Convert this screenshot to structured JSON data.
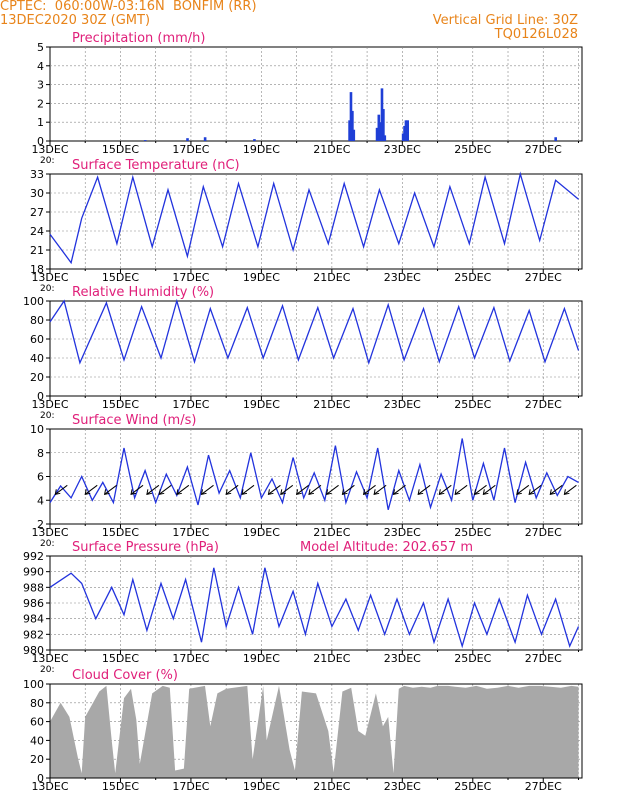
{
  "header": {
    "line1": "CPTEC:  060:00W-03:16N  BONFIM (RR)",
    "line2": "13DEC2020 30Z (GMT)",
    "grid_label": "Vertical Grid Line: 30Z",
    "code": "TQ0126L028",
    "model_altitude": "Model Altitude: 202.657 m"
  },
  "colors": {
    "header": "#e8841a",
    "title": "#e0207a",
    "line": "#2233dd",
    "bar": "#1f3fd6",
    "cloud": "#a8a8a8"
  },
  "x_axis": {
    "labels": [
      "13DEC",
      "15DEC",
      "17DEC",
      "19DEC",
      "21DEC",
      "23DEC",
      "25DEC",
      "27DEC"
    ],
    "label_days": [
      0,
      2,
      4,
      6,
      8,
      10,
      12,
      14
    ],
    "range_days": [
      0,
      15.1
    ],
    "grid": "vertical dashed lines daily at 30Z",
    "truncated_label": "20:"
  },
  "chart_data": [
    {
      "type": "bar",
      "title": "Precipitation (mm/h)",
      "ylim": [
        0,
        5
      ],
      "yticks": [
        "0",
        "1",
        "2",
        "3",
        "4",
        "5"
      ],
      "x_days": [
        2.7,
        3.9,
        4.4,
        5.8,
        8.5,
        8.54,
        8.58,
        8.62,
        9.28,
        9.33,
        9.37,
        9.42,
        9.46,
        9.5,
        10.02,
        10.06,
        10.1,
        10.15,
        14.35
      ],
      "values": [
        0.05,
        0.15,
        0.2,
        0.1,
        1.1,
        2.6,
        1.6,
        0.6,
        0.7,
        1.4,
        1.0,
        2.8,
        1.7,
        0.3,
        0.4,
        0.8,
        1.1,
        1.1,
        0.2
      ]
    },
    {
      "type": "line",
      "title": "Surface Temperature (nC)",
      "ylim": [
        18,
        33
      ],
      "yticks": [
        "18",
        "21",
        "24",
        "27",
        "30",
        "33"
      ],
      "series": [
        {
          "x_days": [
            0,
            0.6,
            0.9,
            1.35,
            1.9,
            2.35,
            2.9,
            3.35,
            3.9,
            4.35,
            4.9,
            5.35,
            5.9,
            6.35,
            6.9,
            7.35,
            7.9,
            8.35,
            8.9,
            9.35,
            9.9,
            10.35,
            10.9,
            11.35,
            11.9,
            12.35,
            12.9,
            13.35,
            13.9,
            14.35,
            15.0
          ],
          "values": [
            23.5,
            19.0,
            26.0,
            32.5,
            22.0,
            32.5,
            21.5,
            30.5,
            20.0,
            31.0,
            21.5,
            31.5,
            21.5,
            31.5,
            21.0,
            30.5,
            22.0,
            31.5,
            21.5,
            30.5,
            22.0,
            30.0,
            21.5,
            31.0,
            22.0,
            32.5,
            22.0,
            33.0,
            22.5,
            32.0,
            29.0
          ]
        }
      ]
    },
    {
      "type": "line",
      "title": "Relative Humidity (%)",
      "ylim": [
        0,
        100
      ],
      "yticks": [
        "0",
        "20",
        "40",
        "60",
        "80",
        "100"
      ],
      "series": [
        {
          "x_days": [
            0,
            0.4,
            0.85,
            1.6,
            2.1,
            2.6,
            3.15,
            3.6,
            4.1,
            4.55,
            5.05,
            5.6,
            6.05,
            6.6,
            7.05,
            7.6,
            8.05,
            8.6,
            9.05,
            9.6,
            10.05,
            10.6,
            11.05,
            11.6,
            12.05,
            12.6,
            13.05,
            13.6,
            14.05,
            14.6,
            15.0
          ],
          "values": [
            78,
            100,
            35,
            98,
            38,
            94,
            40,
            100,
            36,
            92,
            40,
            93,
            40,
            95,
            38,
            93,
            40,
            92,
            35,
            96,
            38,
            92,
            36,
            94,
            40,
            93,
            37,
            90,
            36,
            92,
            48
          ]
        }
      ]
    },
    {
      "type": "line",
      "title": "Surface Wind (m/s)",
      "ylim": [
        2,
        10
      ],
      "yticks": [
        "2",
        "4",
        "6",
        "8",
        "10"
      ],
      "series": [
        {
          "x_days": [
            0,
            0.3,
            0.6,
            0.9,
            1.2,
            1.5,
            1.8,
            2.1,
            2.4,
            2.7,
            3.0,
            3.3,
            3.6,
            3.9,
            4.2,
            4.5,
            4.8,
            5.1,
            5.4,
            5.7,
            6.0,
            6.3,
            6.6,
            6.9,
            7.2,
            7.5,
            7.8,
            8.1,
            8.4,
            8.7,
            9.0,
            9.3,
            9.6,
            9.9,
            10.2,
            10.5,
            10.8,
            11.1,
            11.4,
            11.7,
            12.0,
            12.3,
            12.6,
            12.9,
            13.2,
            13.5,
            13.8,
            14.1,
            14.4,
            14.7,
            15.0
          ],
          "values": [
            3.8,
            5.2,
            4.2,
            6.0,
            4.0,
            5.5,
            3.8,
            8.4,
            4.2,
            6.5,
            3.8,
            6.2,
            4.4,
            6.8,
            3.6,
            7.8,
            4.6,
            6.5,
            4.2,
            8.0,
            4.2,
            5.8,
            3.8,
            7.6,
            4.2,
            6.3,
            4.0,
            8.6,
            3.8,
            6.4,
            4.2,
            8.4,
            3.2,
            6.5,
            4.0,
            7.0,
            3.4,
            6.2,
            4.0,
            9.2,
            4.0,
            7.1,
            4.0,
            8.4,
            3.8,
            7.2,
            4.2,
            6.3,
            4.4,
            6.0,
            5.5
          ]
        }
      ],
      "arrows": {
        "x_days": [
          0.15,
          1.0,
          1.55,
          2.3,
          2.75,
          3.1,
          3.6,
          4.3,
          5.0,
          5.45,
          6.2,
          6.55,
          7.0,
          7.35,
          7.85,
          8.3,
          8.9,
          9.2,
          9.75,
          10.45,
          11.05,
          11.5,
          12.05,
          12.3,
          13.25,
          13.6,
          14.2,
          14.6
        ],
        "directions": [
          "NE",
          "NE",
          "NE",
          "NE",
          "NE",
          "NE",
          "NE",
          "NE",
          "NE",
          "NE",
          "NE",
          "NE",
          "NE",
          "NE",
          "NE",
          "NE",
          "NE",
          "NE",
          "NE",
          "NE",
          "NE",
          "NE",
          "NE",
          "NE",
          "NE",
          "NE",
          "NE",
          "NE"
        ]
      }
    },
    {
      "type": "line",
      "title": "Surface Pressure (hPa)",
      "ylim": [
        980,
        992
      ],
      "yticks": [
        "980",
        "982",
        "984",
        "986",
        "988",
        "990",
        "992"
      ],
      "series": [
        {
          "x_days": [
            0,
            0.6,
            0.9,
            1.3,
            1.75,
            2.1,
            2.35,
            2.75,
            3.15,
            3.5,
            3.85,
            4.3,
            4.65,
            5.0,
            5.35,
            5.75,
            6.1,
            6.5,
            6.9,
            7.25,
            7.6,
            8.0,
            8.4,
            8.75,
            9.1,
            9.5,
            9.85,
            10.2,
            10.6,
            10.9,
            11.3,
            11.7,
            12.05,
            12.4,
            12.75,
            13.2,
            13.55,
            13.95,
            14.35,
            14.75,
            15.0
          ],
          "values": [
            988.0,
            989.8,
            988.5,
            984.0,
            988.0,
            984.5,
            989.0,
            982.5,
            988.5,
            984.0,
            989.0,
            981.0,
            990.5,
            983.0,
            988.0,
            982.0,
            990.5,
            983.0,
            987.5,
            982.0,
            988.5,
            983.0,
            986.5,
            982.5,
            987.0,
            982.0,
            986.5,
            982.0,
            986.0,
            981.0,
            986.5,
            980.5,
            986.0,
            982.0,
            986.5,
            981.0,
            987.0,
            982.0,
            986.5,
            980.5,
            983.0
          ]
        }
      ]
    },
    {
      "type": "area",
      "title": "Cloud Cover (%)",
      "ylim": [
        0,
        100
      ],
      "yticks": [
        "0",
        "20",
        "40",
        "60",
        "80",
        "100"
      ],
      "series": [
        {
          "x_days": [
            0,
            0.3,
            0.55,
            0.8,
            0.9,
            1.0,
            1.4,
            1.6,
            1.75,
            1.85,
            2.1,
            2.3,
            2.45,
            2.55,
            2.9,
            3.2,
            3.4,
            3.55,
            3.8,
            3.95,
            4.4,
            4.55,
            4.75,
            5.0,
            5.6,
            5.75,
            6.05,
            6.15,
            6.5,
            6.8,
            6.95,
            7.15,
            7.55,
            7.9,
            8.05,
            8.3,
            8.55,
            8.75,
            8.95,
            9.25,
            9.45,
            9.6,
            9.75,
            9.9,
            10.05,
            10.3,
            10.55,
            10.8,
            11.0,
            11.3,
            11.5,
            11.8,
            12.1,
            12.4,
            12.7,
            13.0,
            13.3,
            13.6,
            13.9,
            14.2,
            14.5,
            14.8,
            15.0
          ],
          "values": [
            60,
            80,
            65,
            20,
            5,
            65,
            92,
            98,
            40,
            5,
            85,
            95,
            62,
            15,
            90,
            98,
            96,
            8,
            10,
            95,
            98,
            55,
            90,
            95,
            98,
            20,
            98,
            40,
            98,
            30,
            8,
            92,
            90,
            50,
            6,
            92,
            96,
            50,
            45,
            90,
            55,
            65,
            5,
            95,
            98,
            96,
            97,
            96,
            98,
            98,
            97,
            96,
            98,
            95,
            96,
            98,
            96,
            98,
            98,
            97,
            96,
            98,
            97
          ]
        }
      ]
    }
  ]
}
